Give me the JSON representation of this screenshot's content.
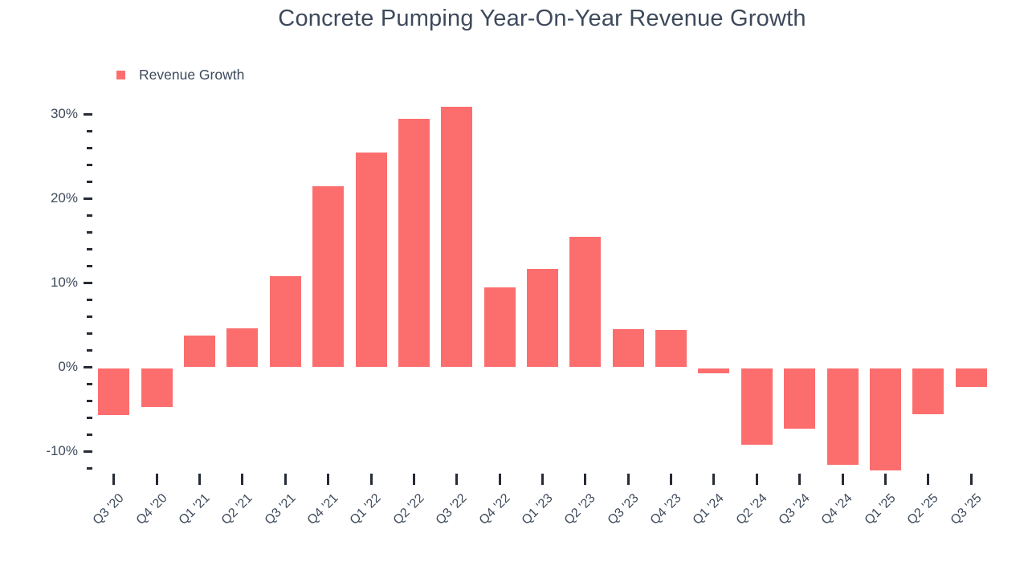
{
  "title": "Concrete Pumping Year-On-Year Revenue Growth",
  "legend": {
    "label": "Revenue Growth"
  },
  "colors": {
    "background": "#FFFFFF",
    "bar": "#FC6E6E",
    "text": "#3E4A5B",
    "tick": "#262B35"
  },
  "chart_data": {
    "type": "bar",
    "title": "Concrete Pumping Year-On-Year Revenue Growth",
    "xlabel": "",
    "ylabel": "",
    "unit": "%",
    "categories": [
      "Q3 '20",
      "Q4 '20",
      "Q1 '21",
      "Q2 '21",
      "Q3 '21",
      "Q4 '21",
      "Q1 '22",
      "Q2 '22",
      "Q3 '22",
      "Q4 '22",
      "Q1 '23",
      "Q2 '23",
      "Q3 '23",
      "Q4 '23",
      "Q1 '24",
      "Q2 '24",
      "Q3 '24",
      "Q4 '24",
      "Q1 '25",
      "Q2 '25",
      "Q3 '25"
    ],
    "series": [
      {
        "name": "Revenue Growth",
        "values": [
          -5.7,
          -4.8,
          3.7,
          4.6,
          10.8,
          21.4,
          25.4,
          29.4,
          30.9,
          9.4,
          11.6,
          15.4,
          4.5,
          4.4,
          -0.8,
          -9.2,
          -7.3,
          -11.6,
          -12.3,
          -5.6,
          -2.4
        ]
      }
    ],
    "ylim": [
      -12,
      31
    ],
    "y_major_ticks": [
      30,
      20,
      10,
      0,
      -10
    ],
    "y_major_tick_labels": [
      "30%",
      "20%",
      "10%",
      "0%",
      "-10%"
    ],
    "y_minor_tick_step": 2,
    "grid": false,
    "axis_lines": false,
    "legend_position": "top-left",
    "bar_color": "#FC6E6E"
  }
}
